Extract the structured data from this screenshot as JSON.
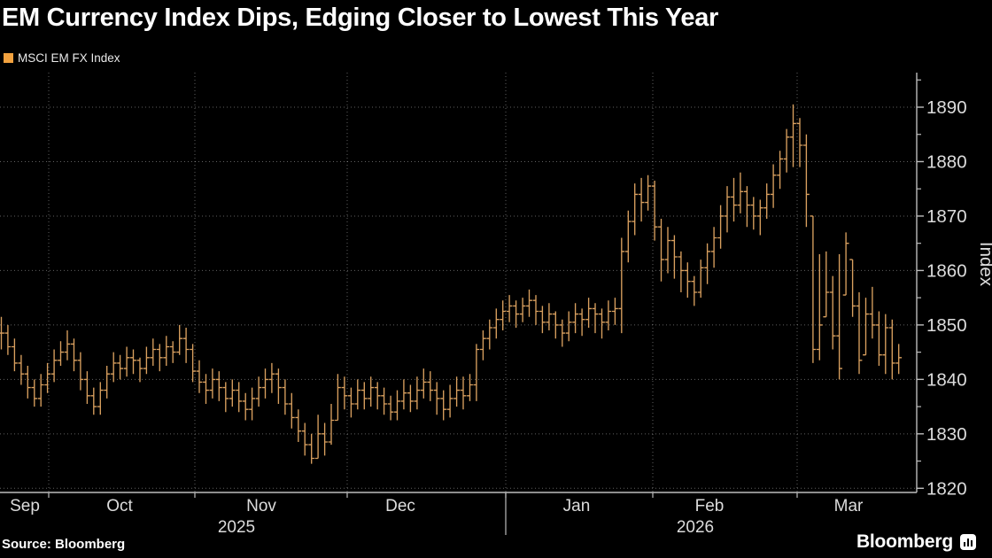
{
  "title": "EM Currency Index Dips, Edging Closer to Lowest This Year",
  "legend": {
    "label": "MSCI EM FX Index",
    "swatch_color": "#f2a23f"
  },
  "footer": {
    "source": "Source: Bloomberg",
    "brand": "Bloomberg"
  },
  "chart_data": {
    "type": "ohlc_bar",
    "series_name": "MSCI EM FX Index",
    "title": "EM Currency Index Dips, Edging Closer to Lowest This Year",
    "ylabel": "Index",
    "ylim": [
      1815,
      1896
    ],
    "y_major_ticks": [
      1890,
      1880,
      1870,
      1860,
      1850,
      1840,
      1830,
      1820
    ],
    "y_minor_ticks": [
      1895,
      1885,
      1875,
      1865,
      1855,
      1845,
      1835,
      1825
    ],
    "grid": "dotted",
    "legend_position": "top-left",
    "month_labels": [
      "Sep",
      "Oct",
      "Nov",
      "Dec",
      "Jan",
      "Feb",
      "Mar"
    ],
    "month_label_x": [
      28,
      135,
      295,
      452,
      651,
      801,
      958
    ],
    "month_boundaries_x": [
      55,
      220,
      392,
      571,
      737,
      900
    ],
    "year_labels": [
      {
        "label": "2025",
        "x": 267
      },
      {
        "label": "2026",
        "x": 785
      }
    ],
    "year_divider_x": 571,
    "bar_color": "#d9a05f",
    "legend_color": "#f2a23f",
    "grid_color": "rgba(255,255,255,0.38)",
    "axis_color": "#bdbdbd",
    "text_color": "#dcdcdc",
    "bars_hlc": [
      [
        1851.5,
        1845.5,
        1848.5
      ],
      [
        1850,
        1844.5,
        1846
      ],
      [
        1847.5,
        1841.5,
        1843
      ],
      [
        1844.5,
        1839,
        1841
      ],
      [
        1842.5,
        1836.5,
        1838.5
      ],
      [
        1840,
        1835,
        1836.5
      ],
      [
        1841,
        1835,
        1839
      ],
      [
        1843,
        1837.5,
        1841
      ],
      [
        1845.5,
        1839.5,
        1843.5
      ],
      [
        1847,
        1842.5,
        1845
      ],
      [
        1849,
        1843.5,
        1846.5
      ],
      [
        1847.5,
        1841.5,
        1843.5
      ],
      [
        1845,
        1838,
        1840
      ],
      [
        1841.5,
        1835.5,
        1837
      ],
      [
        1838.5,
        1833.5,
        1835
      ],
      [
        1839.5,
        1833.5,
        1838
      ],
      [
        1842.5,
        1836.5,
        1841
      ],
      [
        1845,
        1839.5,
        1843
      ],
      [
        1844.5,
        1840,
        1842
      ],
      [
        1846,
        1840.5,
        1844
      ],
      [
        1845.5,
        1841,
        1843.5
      ],
      [
        1844,
        1839.5,
        1842
      ],
      [
        1846,
        1841,
        1844
      ],
      [
        1847.5,
        1842.5,
        1845.5
      ],
      [
        1846.5,
        1841.5,
        1844
      ],
      [
        1848,
        1842.5,
        1846
      ],
      [
        1847,
        1843,
        1845
      ],
      [
        1850,
        1844.5,
        1847.5
      ],
      [
        1849.5,
        1843,
        1845.5
      ],
      [
        1846.5,
        1839.5,
        1841.5
      ],
      [
        1843.5,
        1837.5,
        1839.5
      ],
      [
        1841,
        1835.5,
        1838
      ],
      [
        1842,
        1836.5,
        1840
      ],
      [
        1841.5,
        1836,
        1838.5
      ],
      [
        1839.5,
        1834,
        1836.5
      ],
      [
        1840,
        1835,
        1838
      ],
      [
        1839.5,
        1834,
        1836
      ],
      [
        1837.5,
        1832.5,
        1834.5
      ],
      [
        1838.5,
        1832.5,
        1836.5
      ],
      [
        1840.5,
        1835,
        1838.5
      ],
      [
        1842,
        1836.5,
        1840
      ],
      [
        1843,
        1837.5,
        1841
      ],
      [
        1842,
        1835.5,
        1838.5
      ],
      [
        1840,
        1833.5,
        1835.5
      ],
      [
        1837.5,
        1831,
        1833
      ],
      [
        1834.5,
        1828.5,
        1830.5
      ],
      [
        1832,
        1826,
        1828
      ],
      [
        1830,
        1824.5,
        1825.5
      ],
      [
        1833.5,
        1825.5,
        1830
      ],
      [
        1832,
        1826,
        1828.5
      ],
      [
        1835.5,
        1828,
        1832.5
      ],
      [
        1841,
        1832.5,
        1838.5
      ],
      [
        1840.5,
        1834.5,
        1837
      ],
      [
        1838.5,
        1833,
        1835.5
      ],
      [
        1840,
        1834.5,
        1838
      ],
      [
        1839.5,
        1834.5,
        1836.5
      ],
      [
        1840.5,
        1835,
        1838.5
      ],
      [
        1839.5,
        1834.5,
        1837
      ],
      [
        1838.5,
        1833.5,
        1835.5
      ],
      [
        1837,
        1832.5,
        1834
      ],
      [
        1838,
        1832.5,
        1836
      ],
      [
        1840,
        1834.5,
        1837.5
      ],
      [
        1839,
        1834,
        1836
      ],
      [
        1840.5,
        1834.5,
        1838
      ],
      [
        1842,
        1836.5,
        1839.5
      ],
      [
        1841.5,
        1836,
        1838
      ],
      [
        1839.5,
        1833.5,
        1836.5
      ],
      [
        1838,
        1832.5,
        1834.5
      ],
      [
        1839,
        1833,
        1836.5
      ],
      [
        1840.5,
        1835,
        1838
      ],
      [
        1840.5,
        1834.5,
        1837
      ],
      [
        1841,
        1836,
        1839
      ],
      [
        1846.5,
        1836,
        1845.5
      ],
      [
        1849,
        1843.5,
        1847.5
      ],
      [
        1851,
        1845.5,
        1849.5
      ],
      [
        1853,
        1847.5,
        1851
      ],
      [
        1854.5,
        1849,
        1852.5
      ],
      [
        1855.5,
        1850.5,
        1853.5
      ],
      [
        1854.5,
        1849.5,
        1852
      ],
      [
        1855,
        1850.5,
        1853.5
      ],
      [
        1856.5,
        1851.5,
        1854.5
      ],
      [
        1855.5,
        1850,
        1852.5
      ],
      [
        1853.5,
        1848.5,
        1850.5
      ],
      [
        1854,
        1849,
        1852
      ],
      [
        1852.5,
        1847.5,
        1850
      ],
      [
        1851,
        1846,
        1848.5
      ],
      [
        1852.5,
        1847,
        1850.5
      ],
      [
        1854,
        1848.5,
        1852
      ],
      [
        1853,
        1848,
        1851
      ],
      [
        1855,
        1849.5,
        1853
      ],
      [
        1854,
        1848.5,
        1852
      ],
      [
        1853,
        1847.5,
        1850.5
      ],
      [
        1854.5,
        1849,
        1852.5
      ],
      [
        1855,
        1850,
        1853
      ],
      [
        1866,
        1848.5,
        1863.5
      ],
      [
        1871,
        1861.5,
        1869
      ],
      [
        1876,
        1866.5,
        1874
      ],
      [
        1877,
        1869,
        1872.5
      ],
      [
        1877.5,
        1871,
        1875.5
      ],
      [
        1876.5,
        1865.5,
        1868
      ],
      [
        1869.5,
        1858,
        1862
      ],
      [
        1868,
        1859.5,
        1865.5
      ],
      [
        1866.5,
        1858.5,
        1862.5
      ],
      [
        1863.5,
        1856,
        1860
      ],
      [
        1861.5,
        1855,
        1858
      ],
      [
        1859,
        1853.5,
        1856
      ],
      [
        1862,
        1855,
        1860.5
      ],
      [
        1865,
        1857.5,
        1863.5
      ],
      [
        1868,
        1860.5,
        1866
      ],
      [
        1872,
        1864,
        1870
      ],
      [
        1875.5,
        1867,
        1873.5
      ],
      [
        1877,
        1869,
        1872
      ],
      [
        1878,
        1870.5,
        1874.5
      ],
      [
        1875.5,
        1868,
        1872
      ],
      [
        1873.5,
        1867.5,
        1870
      ],
      [
        1873,
        1866.5,
        1871.5
      ],
      [
        1876,
        1869.5,
        1874
      ],
      [
        1879.5,
        1871.5,
        1877.5
      ],
      [
        1882,
        1875,
        1880.5
      ],
      [
        1886,
        1878,
        1884.5
      ],
      [
        1890.5,
        1879,
        1887
      ],
      [
        1888,
        1879,
        1883
      ],
      [
        1885,
        1868,
        1874
      ],
      [
        1870,
        1843,
        1845.5
      ],
      [
        1863,
        1843.5,
        1850
      ],
      [
        1863.5,
        1851.5,
        1856
      ],
      [
        1859,
        1845.5,
        1848
      ],
      [
        1863,
        1840,
        1842
      ],
      [
        1867,
        1855.5,
        1865
      ],
      [
        1862,
        1851.5,
        1853.5
      ],
      [
        1856,
        1841,
        1843.5
      ],
      [
        1855,
        1844.5,
        1852
      ],
      [
        1857,
        1847.5,
        1850
      ],
      [
        1852.5,
        1842.5,
        1844.5
      ],
      [
        1852,
        1841,
        1849.5
      ],
      [
        1851,
        1840,
        1843
      ],
      [
        1846.5,
        1841,
        1844
      ]
    ]
  }
}
